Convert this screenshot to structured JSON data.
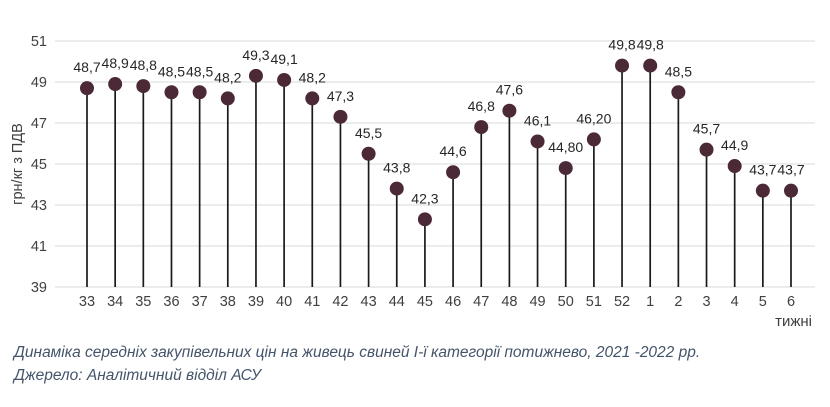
{
  "chart_data": {
    "type": "lollipop",
    "categories": [
      "33",
      "34",
      "35",
      "36",
      "37",
      "38",
      "39",
      "40",
      "41",
      "42",
      "43",
      "44",
      "45",
      "46",
      "47",
      "48",
      "49",
      "50",
      "51",
      "52",
      "1",
      "2",
      "3",
      "4",
      "5",
      "6"
    ],
    "values": [
      48.7,
      48.9,
      48.8,
      48.5,
      48.5,
      48.2,
      49.3,
      49.1,
      48.2,
      47.3,
      45.5,
      43.8,
      42.3,
      44.6,
      46.8,
      47.6,
      46.1,
      44.8,
      46.2,
      49.8,
      49.8,
      48.5,
      45.7,
      44.9,
      43.7,
      43.7
    ],
    "point_labels": [
      "48,7",
      "48,9",
      "48,8",
      "48,5",
      "48,5",
      "48,2",
      "49,3",
      "49,1",
      "48,2",
      "47,3",
      "45,5",
      "43,8",
      "42,3",
      "44,6",
      "46,8",
      "47,6",
      "46,1",
      "44,80",
      "46,20",
      "49,8",
      "49,8",
      "48,5",
      "45,7",
      "44,9",
      "43,7",
      "43,7"
    ],
    "ylabel": "грн/кг з ПДВ",
    "xlabel": "тижні",
    "yticks": [
      39,
      41,
      43,
      45,
      47,
      49,
      51
    ],
    "ylim": [
      39,
      51
    ],
    "grid": true,
    "legend": "none",
    "colors": {
      "dot": "#4b2937",
      "stem": "#1a1a1a",
      "grid": "#d9d9d9",
      "axis_text": "#404040",
      "label_text": "#262626"
    }
  },
  "caption": {
    "title": "Динаміка середніх закупівельних цін на живець свиней І-ї категорії потижнево, 2021 -2022 рр.",
    "source": "Джерело: Аналітичний відділ АСУ"
  }
}
